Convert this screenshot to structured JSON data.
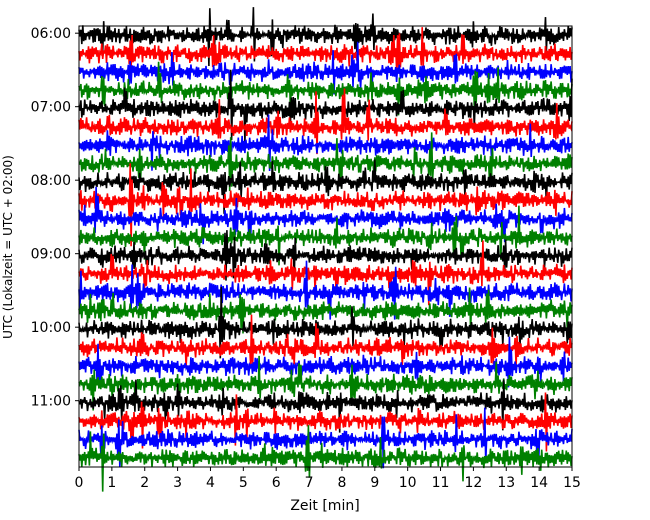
{
  "chart_data": {
    "type": "line",
    "title": "",
    "xlabel": "Zeit  [min]",
    "ylabel": "UTC (Lokalzeit = UTC + 02:00)",
    "xlim": [
      0,
      15
    ],
    "x_ticks": [
      0,
      1,
      2,
      3,
      4,
      5,
      6,
      7,
      8,
      9,
      10,
      11,
      12,
      13,
      14,
      15
    ],
    "x_tick_labels": [
      "0",
      "1",
      "2",
      "3",
      "4",
      "5",
      "6",
      "7",
      "8",
      "9",
      "10",
      "11",
      "12",
      "13",
      "14",
      "15"
    ],
    "y_ticks": [
      "06:00",
      "07:00",
      "08:00",
      "09:00",
      "10:00",
      "11:00"
    ],
    "y_start": "06:00",
    "y_end": "12:00",
    "trace_minutes": 15,
    "grid": false,
    "legend": "none",
    "series_colors": [
      "#000000",
      "#ff0000",
      "#0000ff",
      "#008000"
    ],
    "trace_offsets_utc": [
      "06:00",
      "06:15",
      "06:30",
      "06:45",
      "07:00",
      "07:15",
      "07:30",
      "07:45",
      "08:00",
      "08:15",
      "08:30",
      "08:45",
      "09:00",
      "09:15",
      "09:30",
      "09:45",
      "10:00",
      "10:15",
      "10:30",
      "10:45",
      "11:00",
      "11:15",
      "11:30",
      "11:45"
    ]
  }
}
